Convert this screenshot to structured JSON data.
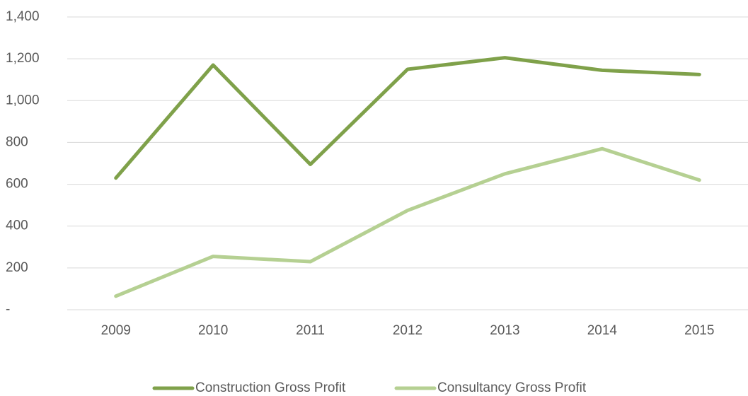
{
  "chart_data": {
    "type": "line",
    "categories": [
      "2009",
      "2010",
      "2011",
      "2012",
      "2013",
      "2014",
      "2015"
    ],
    "series": [
      {
        "name": "Construction Gross Profit",
        "color": "#7fa14a",
        "values": [
          630,
          1170,
          695,
          1150,
          1205,
          1145,
          1125
        ]
      },
      {
        "name": "Consultancy Gross Profit",
        "color": "#b5d092",
        "values": [
          65,
          255,
          230,
          475,
          650,
          770,
          620
        ]
      }
    ],
    "ylim": [
      0,
      1400
    ],
    "yticks": [
      {
        "value": 0,
        "label": "-"
      },
      200,
      400,
      600,
      800,
      {
        "value": 1000,
        "label": "1,000"
      },
      {
        "value": 1200,
        "label": "1,200"
      },
      {
        "value": 1400,
        "label": "1,400"
      }
    ],
    "grid": true,
    "legend": "bottom"
  }
}
